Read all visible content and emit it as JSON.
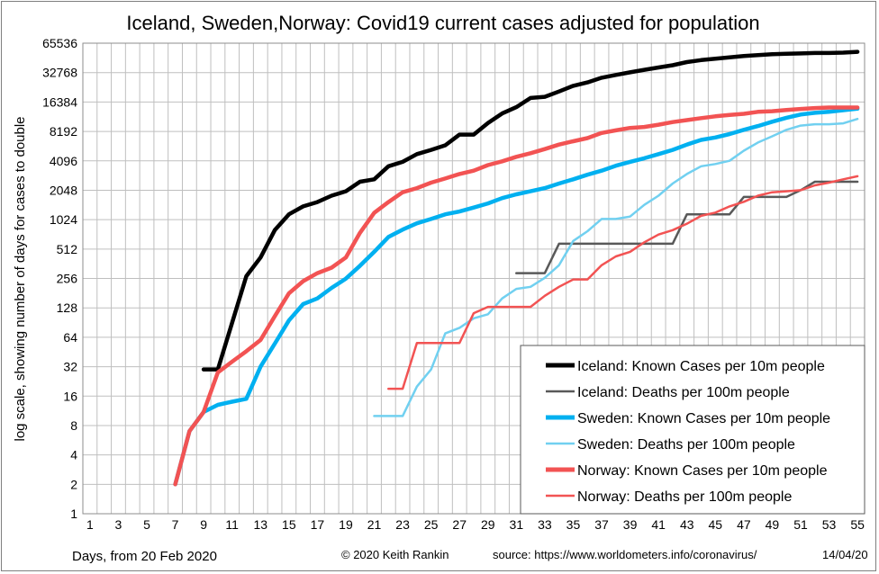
{
  "chart_data": {
    "type": "line",
    "title": "Iceland, Sweden,Norway: Covid19 current cases adjusted for population",
    "ylabel": "log scale, showing number of days for cases to double",
    "xlabel": "Days, from 20 Feb 2020",
    "footer_credit": "© 2020  Keith  Rankin",
    "footer_source": "source:  https://www.worldometers.info/coronavirus/",
    "footer_date": "14/04/20",
    "y_scale": "log2",
    "ylim": [
      1,
      65536
    ],
    "y_ticks": [
      "1",
      "2",
      "4",
      "8",
      "16",
      "32",
      "64",
      "128",
      "256",
      "512",
      "1024",
      "2048",
      "4096",
      "8192",
      "16384",
      "32768",
      "65536"
    ],
    "xlim": [
      1,
      55
    ],
    "x_ticks": [
      "1",
      "3",
      "5",
      "7",
      "9",
      "11",
      "13",
      "15",
      "17",
      "19",
      "21",
      "23",
      "25",
      "27",
      "29",
      "31",
      "33",
      "35",
      "37",
      "39",
      "41",
      "43",
      "45",
      "47",
      "49",
      "51",
      "53",
      "55"
    ],
    "grid": true,
    "legend_position": "bottom-right",
    "series": [
      {
        "name": "Iceland: Known Cases per 10m people",
        "color": "#000000",
        "weight": "thick",
        "x": [
          9,
          10,
          11,
          12,
          13,
          14,
          15,
          16,
          17,
          18,
          19,
          20,
          21,
          22,
          23,
          24,
          25,
          26,
          27,
          28,
          29,
          30,
          31,
          32,
          33,
          34,
          35,
          36,
          37,
          38,
          39,
          40,
          41,
          42,
          43,
          44,
          45,
          46,
          47,
          48,
          49,
          50,
          51,
          52,
          53,
          54,
          55
        ],
        "values": [
          30,
          30,
          90,
          270,
          420,
          800,
          1160,
          1400,
          1550,
          1800,
          2000,
          2500,
          2650,
          3600,
          4000,
          4800,
          5300,
          5900,
          7600,
          7600,
          10000,
          12500,
          14500,
          18000,
          18500,
          21000,
          24000,
          26000,
          29000,
          31000,
          33000,
          35000,
          37000,
          39000,
          42000,
          44000,
          45500,
          47000,
          48500,
          49500,
          50500,
          51000,
          51500,
          52000,
          52000,
          52500,
          53500
        ]
      },
      {
        "name": "Iceland: Deaths per 100m people",
        "color": "#595959",
        "weight": "medium",
        "x": [
          31,
          32,
          33,
          34,
          35,
          36,
          37,
          38,
          39,
          40,
          41,
          42,
          43,
          44,
          45,
          46,
          47,
          48,
          49,
          50,
          51,
          52,
          53,
          54,
          55
        ],
        "values": [
          290,
          290,
          290,
          580,
          580,
          580,
          580,
          580,
          580,
          580,
          580,
          580,
          1160,
          1160,
          1160,
          1160,
          1750,
          1750,
          1750,
          1750,
          2050,
          2500,
          2500,
          2500,
          2500
        ]
      },
      {
        "name": "Sweden: Known Cases per 10m people",
        "color": "#00b0f0",
        "weight": "thick",
        "x": [
          7,
          8,
          9,
          10,
          11,
          12,
          13,
          14,
          15,
          16,
          17,
          18,
          19,
          20,
          21,
          22,
          23,
          24,
          25,
          26,
          27,
          28,
          29,
          30,
          31,
          32,
          33,
          34,
          35,
          36,
          37,
          38,
          39,
          40,
          41,
          42,
          43,
          44,
          45,
          46,
          47,
          48,
          49,
          50,
          51,
          52,
          53,
          54,
          55
        ],
        "values": [
          2,
          7,
          11,
          13,
          14,
          15,
          32,
          55,
          95,
          140,
          160,
          205,
          255,
          345,
          480,
          680,
          810,
          940,
          1040,
          1160,
          1240,
          1360,
          1500,
          1700,
          1860,
          2000,
          2150,
          2400,
          2650,
          2950,
          3250,
          3650,
          4000,
          4350,
          4800,
          5300,
          6000,
          6700,
          7100,
          7700,
          8500,
          9300,
          10300,
          11300,
          12200,
          12700,
          13000,
          13500,
          14000
        ]
      },
      {
        "name": "Sweden: Deaths per 100m people",
        "color": "#71d0f0",
        "weight": "medium",
        "x": [
          21,
          22,
          23,
          24,
          25,
          26,
          27,
          28,
          29,
          30,
          31,
          32,
          33,
          34,
          35,
          36,
          37,
          38,
          39,
          40,
          41,
          42,
          43,
          44,
          45,
          46,
          47,
          48,
          49,
          50,
          51,
          52,
          53,
          54,
          55
        ],
        "values": [
          10,
          10,
          10,
          20,
          30,
          70,
          80,
          100,
          110,
          160,
          200,
          210,
          260,
          350,
          620,
          780,
          1040,
          1040,
          1100,
          1450,
          1800,
          2400,
          3000,
          3600,
          3800,
          4100,
          5200,
          6300,
          7300,
          8500,
          9400,
          9700,
          9700,
          9900,
          11000
        ]
      },
      {
        "name": "Norway: Known Cases per 10m people",
        "color": "#f25353",
        "weight": "thick",
        "x": [
          7,
          8,
          9,
          10,
          11,
          12,
          13,
          14,
          15,
          16,
          17,
          18,
          19,
          20,
          21,
          22,
          23,
          24,
          25,
          26,
          27,
          28,
          29,
          30,
          31,
          32,
          33,
          34,
          35,
          36,
          37,
          38,
          39,
          40,
          41,
          42,
          43,
          44,
          45,
          46,
          47,
          48,
          49,
          50,
          51,
          52,
          53,
          54,
          55
        ],
        "values": [
          2,
          7,
          11,
          28,
          36,
          46,
          60,
          105,
          180,
          240,
          290,
          330,
          420,
          750,
          1200,
          1550,
          1950,
          2150,
          2450,
          2700,
          3000,
          3250,
          3700,
          4050,
          4500,
          4900,
          5400,
          6000,
          6500,
          7000,
          7900,
          8400,
          8900,
          9100,
          9600,
          10200,
          10700,
          11200,
          11700,
          12100,
          12400,
          13000,
          13200,
          13600,
          13900,
          14200,
          14400,
          14400,
          14400
        ]
      },
      {
        "name": "Norway: Deaths per 100m people",
        "color": "#f25353",
        "weight": "medium",
        "x": [
          22,
          23,
          24,
          25,
          26,
          27,
          28,
          29,
          30,
          31,
          32,
          33,
          34,
          35,
          36,
          37,
          38,
          39,
          40,
          41,
          42,
          43,
          44,
          45,
          46,
          47,
          48,
          49,
          50,
          51,
          52,
          53,
          54,
          55
        ],
        "values": [
          19,
          19,
          56,
          56,
          56,
          56,
          113,
          131,
          131,
          131,
          131,
          170,
          210,
          250,
          250,
          350,
          430,
          480,
          600,
          720,
          800,
          930,
          1120,
          1210,
          1400,
          1560,
          1800,
          1950,
          2000,
          2050,
          2300,
          2450,
          2650,
          2850
        ]
      }
    ]
  }
}
